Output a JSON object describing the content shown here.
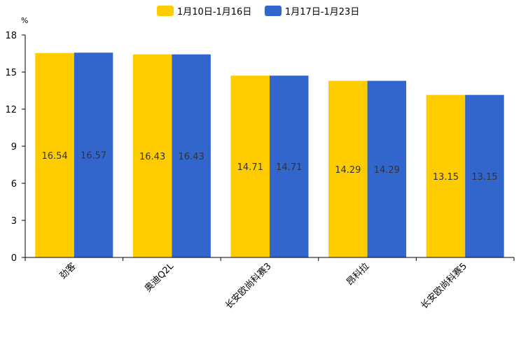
{
  "chart_data": {
    "type": "bar",
    "unit": "%",
    "categories": [
      "劲客",
      "奥迪Q2L",
      "长安欧尚科赛3",
      "昂科拉",
      "长安欧尚科赛5"
    ],
    "series": [
      {
        "name": "1月10日-1月16日",
        "color": "#ffcc00",
        "values": [
          16.54,
          16.43,
          14.71,
          14.29,
          13.15
        ]
      },
      {
        "name": "1月17日-1月23日",
        "color": "#3366cc",
        "values": [
          16.57,
          16.43,
          14.71,
          14.29,
          13.15
        ]
      }
    ],
    "ylim": [
      0,
      18
    ],
    "yticks": [
      0,
      3,
      6,
      9,
      12,
      15,
      18
    ],
    "legend_position": "top-center",
    "grid": false
  }
}
